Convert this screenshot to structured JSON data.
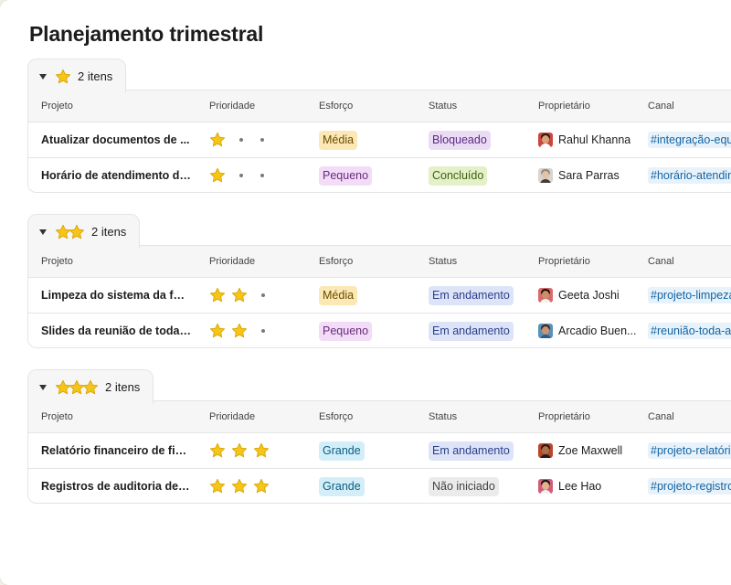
{
  "page": {
    "title": "Planejamento trimestral"
  },
  "columns": {
    "project": "Projeto",
    "priority": "Prioridade",
    "effort": "Esforço",
    "status": "Status",
    "owner": "Proprietário",
    "channel": "Canal"
  },
  "colors": {
    "star": "#f5c518",
    "star_outline": "#d9a400",
    "effort": {
      "Média": {
        "bg": "#fbe8b4",
        "fg": "#6b4a00"
      },
      "Pequeno": {
        "bg": "#f2dcf7",
        "fg": "#6a2a7d"
      },
      "Grande": {
        "bg": "#d3eef9",
        "fg": "#0b5d80"
      }
    },
    "status": {
      "Bloqueado": {
        "bg": "#ebdcf5",
        "fg": "#5b2a82"
      },
      "Concluído": {
        "bg": "#e3f0c8",
        "fg": "#3f5f0f"
      },
      "Em andamento": {
        "bg": "#dde4f7",
        "fg": "#2b3f8a"
      },
      "Não iniciado": {
        "bg": "#ebebeb",
        "fg": "#454245"
      }
    }
  },
  "groups": [
    {
      "stars": 1,
      "count_label": "2 itens",
      "rows": [
        {
          "project": "Atualizar documentos de ...",
          "priority": 1,
          "effort": "Média",
          "status": "Bloqueado",
          "owner": "Rahul Khanna",
          "avatar": {
            "bg": "#c9473d",
            "hair": "#2b1a12",
            "shirt": "#ffffff",
            "skin": "#d9a27c"
          },
          "channel": "#integração-equi"
        },
        {
          "project": "Horário de atendimento do ...",
          "priority": 1,
          "effort": "Pequeno",
          "status": "Concluído",
          "owner": "Sara Parras",
          "avatar": {
            "bg": "#d9d4cf",
            "hair": "#8a8a8a",
            "shirt": "#3c3c3c",
            "skin": "#e6c2a5"
          },
          "channel": "#horário-atendim"
        }
      ]
    },
    {
      "stars": 2,
      "count_label": "2 itens",
      "rows": [
        {
          "project": "Limpeza do sistema da folha ...",
          "priority": 2,
          "effort": "Média",
          "status": "Em andamento",
          "owner": "Geeta Joshi",
          "avatar": {
            "bg": "#d96a6a",
            "hair": "#1a1210",
            "shirt": "#f2f2f2",
            "skin": "#c98f6d"
          },
          "channel": "#projeto-limpeza"
        },
        {
          "project": "Slides da reunião de toda a ...",
          "priority": 2,
          "effort": "Pequeno",
          "status": "Em andamento",
          "owner": "Arcadio Buen...",
          "avatar": {
            "bg": "#5a8fb8",
            "hair": "#3b2a20",
            "shirt": "#2f5d8a",
            "skin": "#c9956f"
          },
          "channel": "#reunião-toda-a-"
        }
      ]
    },
    {
      "stars": 3,
      "count_label": "2 itens",
      "rows": [
        {
          "project": "Relatório financeiro de final d...",
          "priority": 3,
          "effort": "Grande",
          "status": "Em andamento",
          "owner": "Zoe Maxwell",
          "avatar": {
            "bg": "#b8452e",
            "hair": "#2a1710",
            "shirt": "#1f1f1f",
            "skin": "#a9704c"
          },
          "channel": "#projeto-relatório"
        },
        {
          "project": "Registros de auditoria de F&A",
          "priority": 3,
          "effort": "Grande",
          "status": "Não iniciado",
          "owner": "Lee Hao",
          "avatar": {
            "bg": "#d15b7a",
            "hair": "#1a1414",
            "shirt": "#f0f0f0",
            "skin": "#e0b48e"
          },
          "channel": "#projeto-registro"
        }
      ]
    }
  ]
}
